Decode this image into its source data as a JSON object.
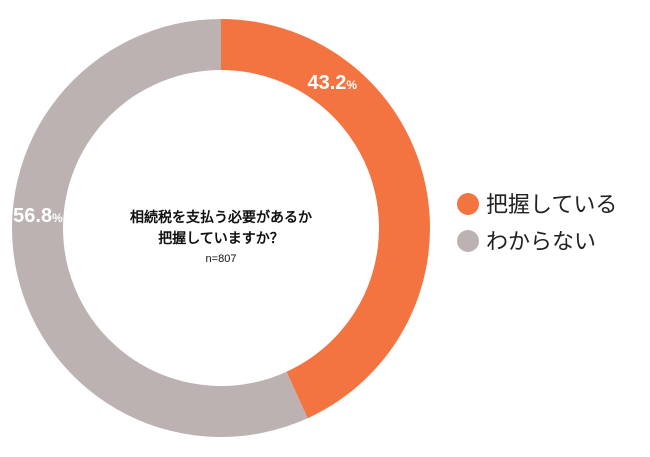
{
  "chart_data": {
    "type": "pie",
    "variant": "donut",
    "question_lines": [
      "相続税を支払う必要があるか",
      "把握していますか？"
    ],
    "sample_size": "n=807",
    "slices": [
      {
        "label": "把握している",
        "value": 43.2,
        "display_value": "43.2",
        "unit": "%",
        "color": "#f47441"
      },
      {
        "label": "わからない",
        "value": 56.8,
        "display_value": "56.8",
        "unit": "%",
        "color": "#bcb2b2"
      }
    ],
    "legend_position": "right"
  }
}
